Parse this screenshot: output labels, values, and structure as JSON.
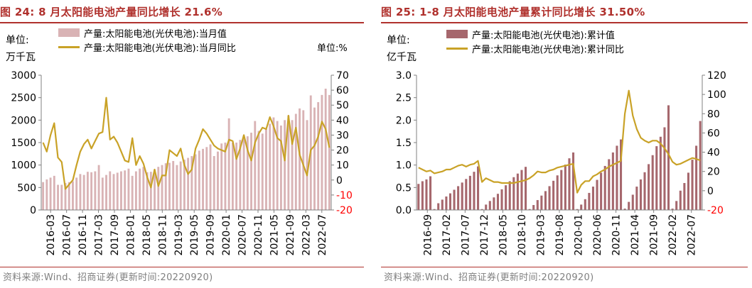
{
  "colors": {
    "title": "#B0312D",
    "neg_tick": "#FF0000",
    "line": "#C9A227",
    "bar_left": "#D9B3B5",
    "bar_right": "#A6676D",
    "source": "#808080"
  },
  "left": {
    "title": "图 24: 8 月太阳能电池产量同比增长 21.6%",
    "unit_left_line1": "单位:",
    "unit_left_line2": "万千瓦",
    "unit_right": "单位:%",
    "legend": [
      "产量:太阳能电池(光伏电池):当月值",
      "产量:太阳能电池(光伏电池):当月同比"
    ],
    "source": "资料来源:Wind、招商证券(更新时间:20220920)"
  },
  "right": {
    "title": "图 25: 1-8 月太阳能电池产量累计同比增长 31.50%",
    "unit_left_line1": "单位:",
    "unit_left_line2": "亿千瓦",
    "legend": [
      "产量:太阳能电池(光伏电池):累计值",
      "产量:太阳能电池(光伏电池):累计同比"
    ],
    "source": "资料来源:Wind、招商证券(更新时间:20220920)"
  },
  "chart_data": [
    {
      "type": "bar",
      "title": "8 月太阳能电池产量同比增长 21.6%",
      "ylabel": "万千瓦",
      "y2label": "%",
      "ylim": [
        0,
        3000
      ],
      "yticks": [
        0,
        500,
        1000,
        1500,
        2000,
        2500,
        3000
      ],
      "y2lim": [
        -20,
        70
      ],
      "y2ticks": [
        -20,
        -10,
        0,
        10,
        20,
        30,
        40,
        50,
        60,
        70
      ],
      "xtick_labels": [
        "2016-03",
        "2016-07",
        "2016-11",
        "2017-03",
        "2017-09",
        "2018-01",
        "2018-05",
        "2018-11",
        "2019-03",
        "2019-05",
        "2019-09",
        "2020-01",
        "2020-07",
        "2020-11",
        "2021-05",
        "2021-09",
        "2022-03",
        "2022-07"
      ],
      "categories": [
        "2016-03",
        "2016-04",
        "2016-05",
        "2016-06",
        "2016-07",
        "2016-08",
        "2016-09",
        "2016-10",
        "2016-11",
        "2016-12",
        "2017-01",
        "2017-02",
        "2017-03",
        "2017-04",
        "2017-05",
        "2017-06",
        "2017-07",
        "2017-08",
        "2017-09",
        "2017-10",
        "2017-11",
        "2017-12",
        "2018-01",
        "2018-02",
        "2018-03",
        "2018-04",
        "2018-05",
        "2018-06",
        "2018-07",
        "2018-08",
        "2018-09",
        "2018-10",
        "2018-11",
        "2018-12",
        "2019-01",
        "2019-02",
        "2019-03",
        "2019-04",
        "2019-05",
        "2019-06",
        "2019-07",
        "2019-08",
        "2019-09",
        "2019-10",
        "2019-11",
        "2019-12",
        "2020-01",
        "2020-02",
        "2020-03",
        "2020-04",
        "2020-05",
        "2020-06",
        "2020-07",
        "2020-08",
        "2020-09",
        "2020-10",
        "2020-11",
        "2020-12",
        "2021-01",
        "2021-02",
        "2021-03",
        "2021-04",
        "2021-05",
        "2021-06",
        "2021-07",
        "2021-08",
        "2021-09",
        "2021-10",
        "2021-11",
        "2021-12",
        "2022-01",
        "2022-02",
        "2022-03",
        "2022-04",
        "2022-05",
        "2022-06",
        "2022-07",
        "2022-08"
      ],
      "series": [
        {
          "name": "产量:太阳能电池(光伏电池):当月值",
          "kind": "bar",
          "axis": "left",
          "values": [
            620,
            680,
            720,
            760,
            560,
            560,
            600,
            620,
            640,
            720,
            800,
            780,
            850,
            840,
            860,
            1000,
            720,
            780,
            860,
            800,
            830,
            860,
            880,
            920,
            760,
            860,
            920,
            960,
            840,
            850,
            900,
            960,
            1000,
            1040,
            1050,
            1090,
            1000,
            1080,
            1120,
            1160,
            1200,
            1240,
            1320,
            1360,
            1400,
            1460,
            1200,
            1300,
            1480,
            1500,
            2040,
            1500,
            1500,
            1560,
            1660,
            1640,
            1720,
            1980,
            1760,
            1700,
            1800,
            1920,
            2060,
            1980,
            1880,
            2000,
            2100,
            2000,
            2140,
            2260,
            2220,
            2000,
            2550,
            2280,
            2400,
            2560,
            2700,
            2560
          ]
        },
        {
          "name": "产量:太阳能电池(光伏电池):当月同比",
          "kind": "line",
          "axis": "right",
          "values": [
            25,
            19,
            30,
            38,
            15,
            12,
            -6,
            -3,
            0,
            10,
            19,
            24,
            27,
            21,
            26,
            31,
            32,
            55,
            27,
            29,
            25,
            19,
            13,
            12,
            28,
            10,
            16,
            11,
            2,
            -5,
            7,
            -4,
            3,
            3,
            20,
            18,
            16,
            21,
            10,
            4,
            7,
            21,
            27,
            34,
            31,
            27,
            23,
            21,
            20,
            19,
            27,
            26,
            14,
            21,
            30,
            20,
            13,
            25,
            31,
            35,
            34,
            42,
            36,
            28,
            26,
            13,
            43,
            24,
            35,
            17,
            10,
            3,
            20,
            23,
            29,
            39,
            34,
            21.6
          ]
        }
      ]
    },
    {
      "type": "bar",
      "title": "1-8 月太阳能电池产量累计同比增长 31.50%",
      "ylabel": "亿千瓦",
      "ylim": [
        0,
        3.0
      ],
      "yticks": [
        0.0,
        0.5,
        1.0,
        1.5,
        2.0,
        2.5,
        3.0
      ],
      "y2lim": [
        -20,
        120
      ],
      "y2ticks": [
        -20,
        0,
        20,
        40,
        60,
        80,
        100,
        120
      ],
      "xtick_labels": [
        "2016-09",
        "2017-02",
        "2017-07",
        "2017-12",
        "2018-05",
        "2018-10",
        "2019-03",
        "2019-08",
        "2020-01",
        "2020-06",
        "2020-11",
        "2021-04",
        "2021-09",
        "2022-02",
        "2022-07"
      ],
      "categories": [
        "2016-09",
        "2016-10",
        "2016-11",
        "2016-12",
        "2017-01",
        "2017-02",
        "2017-03",
        "2017-04",
        "2017-05",
        "2017-06",
        "2017-07",
        "2017-08",
        "2017-09",
        "2017-10",
        "2017-11",
        "2017-12",
        "2018-01",
        "2018-02",
        "2018-03",
        "2018-04",
        "2018-05",
        "2018-06",
        "2018-07",
        "2018-08",
        "2018-09",
        "2018-10",
        "2018-11",
        "2018-12",
        "2019-01",
        "2019-02",
        "2019-03",
        "2019-04",
        "2019-05",
        "2019-06",
        "2019-07",
        "2019-08",
        "2019-09",
        "2019-10",
        "2019-11",
        "2019-12",
        "2020-01",
        "2020-02",
        "2020-03",
        "2020-04",
        "2020-05",
        "2020-06",
        "2020-07",
        "2020-08",
        "2020-09",
        "2020-10",
        "2020-11",
        "2020-12",
        "2021-01",
        "2021-02",
        "2021-03",
        "2021-04",
        "2021-05",
        "2021-06",
        "2021-07",
        "2021-08",
        "2021-09",
        "2021-10",
        "2021-11",
        "2021-12",
        "2022-01",
        "2022-02",
        "2022-03",
        "2022-04",
        "2022-05",
        "2022-06",
        "2022-07",
        "2022-08"
      ],
      "series": [
        {
          "name": "产量:太阳能电池(光伏电池):累计值",
          "kind": "bar",
          "axis": "left",
          "values": [
            0.58,
            0.64,
            0.68,
            0.75,
            0.02,
            0.15,
            0.23,
            0.3,
            0.37,
            0.45,
            0.53,
            0.61,
            0.69,
            0.76,
            0.85,
            0.97,
            0.02,
            0.12,
            0.2,
            0.28,
            0.36,
            0.46,
            0.55,
            0.64,
            0.73,
            0.81,
            0.89,
            0.96,
            0.02,
            0.11,
            0.22,
            0.32,
            0.42,
            0.53,
            0.65,
            0.77,
            0.89,
            1.01,
            1.15,
            1.28,
            0.02,
            0.12,
            0.24,
            0.38,
            0.52,
            0.67,
            0.83,
            0.98,
            1.13,
            1.28,
            1.43,
            1.57,
            0.03,
            0.18,
            0.34,
            0.52,
            0.68,
            0.84,
            1.02,
            1.22,
            1.42,
            1.63,
            1.84,
            2.33,
            0.03,
            0.2,
            0.43,
            0.6,
            0.83,
            1.12,
            1.43,
            1.98
          ]
        },
        {
          "name": "产量:太阳能电池(光伏电池):累计同比",
          "kind": "line",
          "axis": "right",
          "values": [
            24,
            22,
            20,
            21,
            18,
            19,
            20,
            22,
            22,
            24,
            26,
            27,
            25,
            27,
            28,
            31,
            9,
            13,
            11,
            9,
            9,
            8,
            8,
            8,
            8,
            9,
            10,
            11,
            13,
            16,
            20,
            19,
            19,
            21,
            22,
            24,
            25,
            26,
            27,
            28,
            -2,
            6,
            10,
            10,
            15,
            17,
            20,
            22,
            25,
            27,
            29,
            31,
            80,
            104,
            78,
            64,
            55,
            52,
            50,
            52,
            52,
            49,
            44,
            38,
            30,
            27,
            28,
            30,
            32,
            34,
            33,
            31.5
          ]
        }
      ]
    }
  ]
}
